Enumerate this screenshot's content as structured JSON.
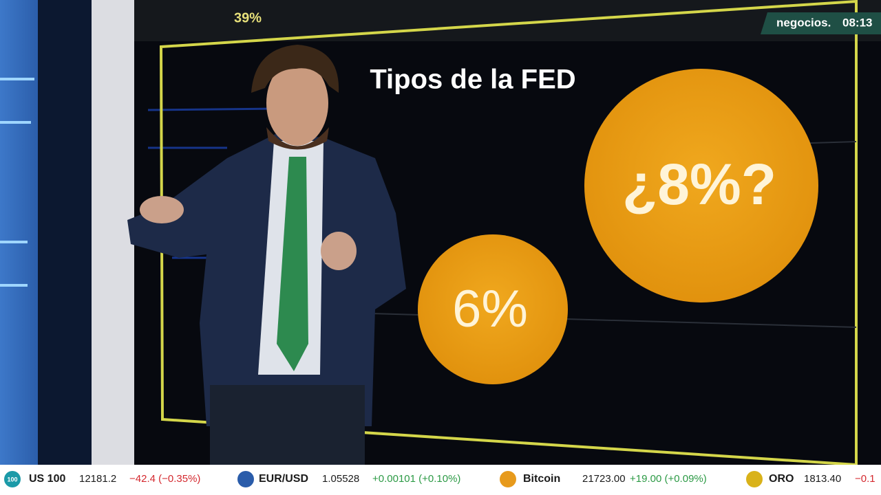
{
  "screen": {
    "title": "Tipos de la FED",
    "top_figure": "39%",
    "circles": [
      "6%",
      "¿8%?"
    ]
  },
  "channel": {
    "logo": "negocios.",
    "time": "08:13"
  },
  "ticker": [
    {
      "icon": "100",
      "name": "US 100",
      "price": "12181.2",
      "change": "−42.4 (−0.35%)"
    },
    {
      "name": "EUR/USD",
      "price": "1.05528",
      "change": "+0.00101 (+0.10%)"
    },
    {
      "name": "Bitcoin",
      "price": "21723.00",
      "change": "+19.00 (+0.09%)"
    },
    {
      "name": "ORO",
      "price": "1813.40",
      "change": "−0.1"
    }
  ]
}
